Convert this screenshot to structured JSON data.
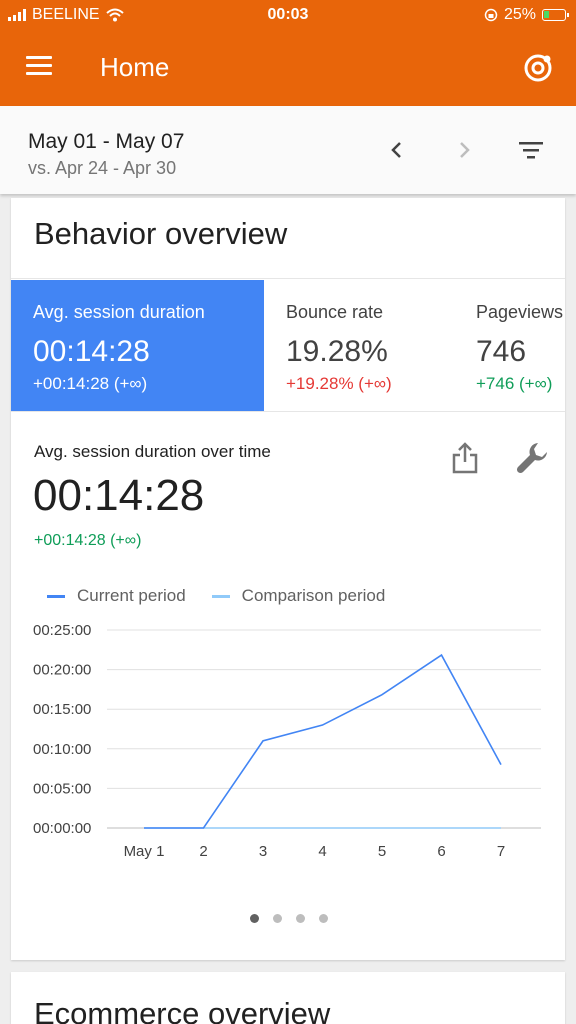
{
  "status_bar": {
    "carrier": "BEELINE",
    "time": "00:03",
    "battery": "25%",
    "battery_level": 0.25
  },
  "app_bar": {
    "title": "Home",
    "menu_icon": "menu-icon",
    "account_icon": "account-switcher-icon"
  },
  "date_range": {
    "current": "May 01 - May 07",
    "comparison": "vs. Apr 24 - Apr 30"
  },
  "behavior_card": {
    "title": "Behavior overview",
    "metrics": [
      {
        "label": "Avg. session duration",
        "value": "00:14:28",
        "delta": "+00:14:28 (+∞)"
      },
      {
        "label": "Bounce rate",
        "value": "19.28%",
        "delta": "+19.28% (+∞)"
      },
      {
        "label": "Pageviews",
        "value": "746",
        "delta": "+746 (+∞)"
      }
    ],
    "detail": {
      "label": "Avg. session duration over time",
      "value": "00:14:28",
      "delta": "+00:14:28 (+∞)"
    },
    "legend": {
      "current": "Current period",
      "comparison": "Comparison period"
    },
    "pager": {
      "total": 4,
      "active": 0
    }
  },
  "colors": {
    "app_bar": "#E8650A",
    "selected_metric": "#4285F4",
    "current_series": "#4285F4",
    "comparison_series": "#90CAF9",
    "positive": "#0F9D58",
    "negative": "#E53935"
  },
  "chart_data": {
    "type": "line",
    "x": [
      "May 1",
      "2",
      "3",
      "4",
      "5",
      "6",
      "7"
    ],
    "y_ticks": [
      "00:00:00",
      "00:05:00",
      "00:10:00",
      "00:15:00",
      "00:20:00",
      "00:25:00"
    ],
    "ylim_seconds": [
      0,
      1500
    ],
    "series": [
      {
        "name": "Current period",
        "values_seconds": [
          0,
          0,
          660,
          780,
          1010,
          1310,
          480
        ]
      },
      {
        "name": "Comparison period",
        "values_seconds": [
          0,
          0,
          0,
          0,
          0,
          0,
          0
        ]
      }
    ],
    "grid": true,
    "legend": "top-left"
  },
  "next_card": {
    "title": "Ecommerce overview"
  }
}
